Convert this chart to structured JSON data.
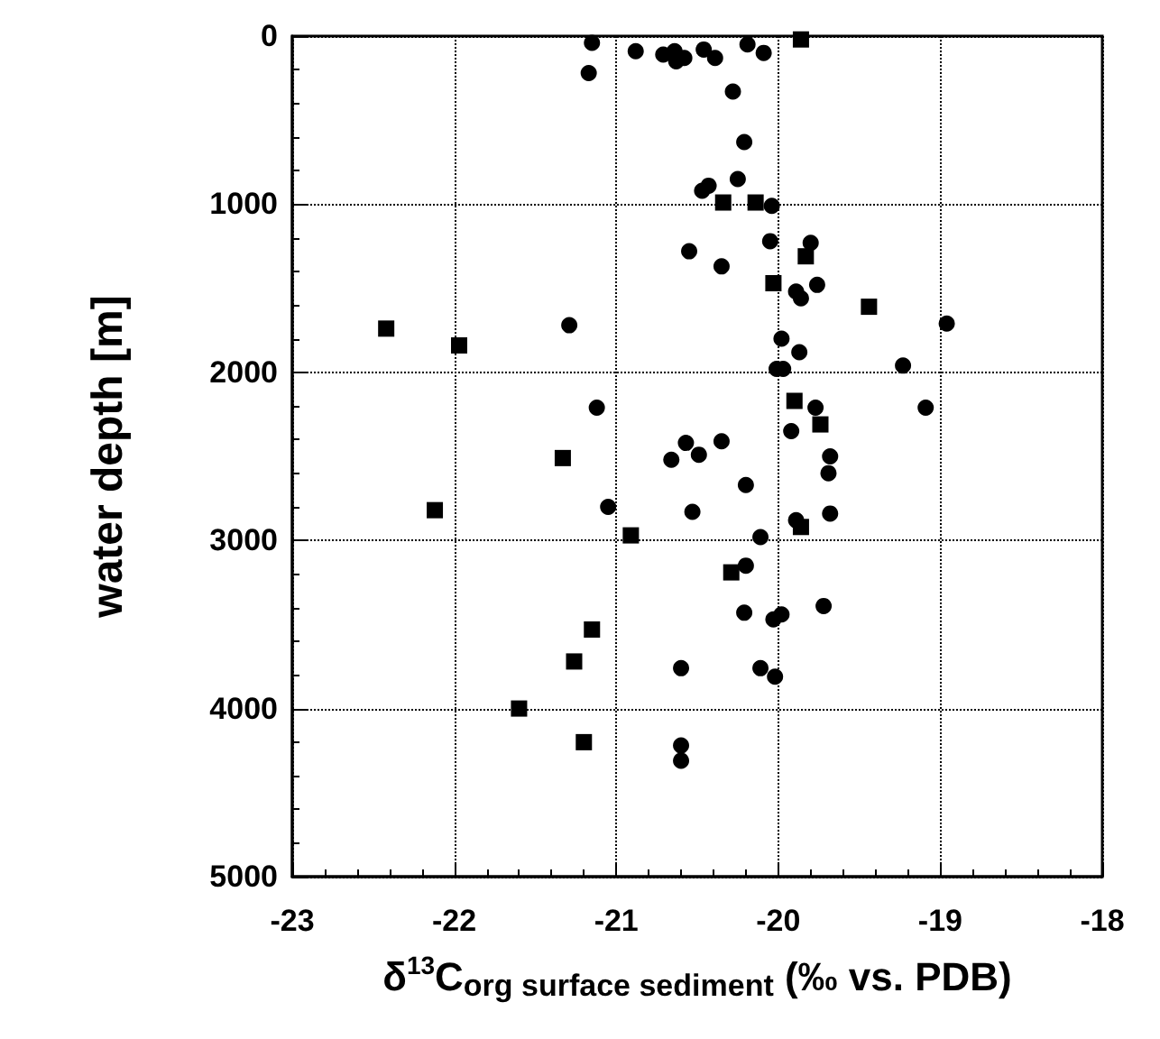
{
  "chart_data": {
    "type": "scatter",
    "xlabel": "δ$^{13}$C$_{org surface sediment}$ (‰ vs. PDB)",
    "ylabel": "water depth [m]",
    "xlim": [
      -23,
      -18
    ],
    "xticks": [
      -23,
      -22,
      -21,
      -20,
      -19,
      -18
    ],
    "ylim": [
      5000,
      0
    ],
    "yticks": [
      0,
      1000,
      2000,
      3000,
      4000,
      5000
    ],
    "grid": true,
    "series": [
      {
        "color": "#000000",
        "marker": "circle",
        "x": [
          -21.15,
          -21.17,
          -20.88,
          -20.71,
          -20.64,
          -20.63,
          -20.58,
          -20.46,
          -20.39,
          -20.19,
          -20.09,
          -20.28,
          -20.21,
          -20.25,
          -20.47,
          -20.43,
          -20.04,
          -20.05,
          -19.8,
          -20.55,
          -20.35,
          -19.89,
          -19.86,
          -19.76,
          -21.29,
          -18.96,
          -19.98,
          -19.87,
          -19.23,
          -20.01,
          -19.97,
          -19.77,
          -19.09,
          -21.12,
          -19.92,
          -20.57,
          -20.35,
          -20.49,
          -20.66,
          -19.68,
          -19.69,
          -20.2,
          -21.05,
          -20.53,
          -19.89,
          -19.68,
          -20.11,
          -20.2,
          -20.21,
          -20.03,
          -19.98,
          -19.72,
          -20.6,
          -20.11,
          -20.02,
          -20.6,
          -20.6
        ],
        "values": [
          40,
          220,
          90,
          110,
          90,
          150,
          130,
          80,
          130,
          50,
          100,
          330,
          630,
          850,
          920,
          890,
          1010,
          1220,
          1230,
          1280,
          1370,
          1520,
          1560,
          1480,
          1720,
          1710,
          1800,
          1880,
          1960,
          1980,
          1980,
          2210,
          2210,
          2210,
          2350,
          2420,
          2410,
          2490,
          2520,
          2500,
          2600,
          2670,
          2800,
          2830,
          2880,
          2840,
          2980,
          3150,
          3430,
          3470,
          3440,
          3390,
          3760,
          3760,
          3810,
          4220,
          4310
        ]
      },
      {
        "color": "#000000",
        "marker": "square",
        "x": [
          -19.86,
          -20.34,
          -20.14,
          -19.83,
          -20.03,
          -19.44,
          -22.42,
          -21.97,
          -19.9,
          -19.74,
          -21.33,
          -22.12,
          -19.86,
          -20.91,
          -20.29,
          -21.15,
          -21.26,
          -21.6,
          -21.2
        ],
        "values": [
          20,
          990,
          990,
          1310,
          1470,
          1610,
          1740,
          1840,
          2170,
          2310,
          2510,
          2820,
          2920,
          2970,
          3190,
          3530,
          3720,
          4000,
          4200
        ]
      }
    ]
  }
}
